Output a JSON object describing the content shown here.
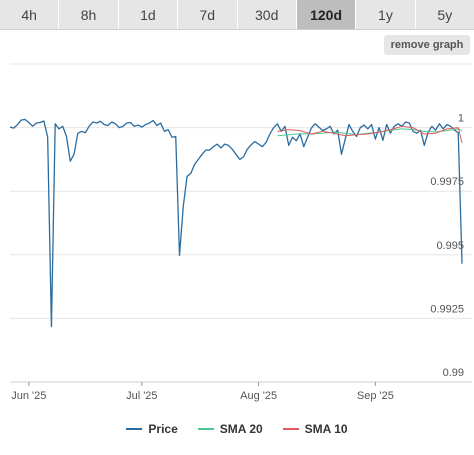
{
  "range_tabs": [
    {
      "label": "4h"
    },
    {
      "label": "8h"
    },
    {
      "label": "1d"
    },
    {
      "label": "7d"
    },
    {
      "label": "30d"
    },
    {
      "label": "120d",
      "active": true
    },
    {
      "label": "1y"
    },
    {
      "label": "5y"
    }
  ],
  "controls": {
    "remove_graph_label": "remove graph"
  },
  "colors": {
    "price": "#2b6c9e",
    "sma20": "#4cc790",
    "sma10": "#e05a5a",
    "grid": "#e6e6e6",
    "active_tab": "#bdbdbd"
  },
  "chart_data": {
    "type": "line",
    "xlabel": "",
    "ylabel": "",
    "x_axis": {
      "start": "2025-05-27",
      "end": "2025-09-24",
      "tick_labels": [
        {
          "label": "Jun '25",
          "date": "2025-06-01"
        },
        {
          "label": "Jul '25",
          "date": "2025-07-01"
        },
        {
          "label": "Aug '25",
          "date": "2025-08-01"
        },
        {
          "label": "Sep '25",
          "date": "2025-09-01"
        }
      ]
    },
    "y_axis": {
      "range": [
        0.99,
        1.0025
      ],
      "tick_labels": [
        {
          "label": "0.99",
          "value": 0.99
        },
        {
          "label": "0.9925",
          "value": 0.9925
        },
        {
          "label": "0.995",
          "value": 0.995
        },
        {
          "label": "0.9975",
          "value": 0.9975
        },
        {
          "label": "1",
          "value": 1.0
        }
      ],
      "position": "right"
    },
    "grid": true,
    "legend_position": "bottom",
    "series": [
      {
        "name": "Price",
        "points": [
          [
            "2025-05-27",
            1.00002
          ],
          [
            "2025-05-28",
            0.99998
          ],
          [
            "2025-05-29",
            1.00012
          ],
          [
            "2025-05-30",
            1.0003
          ],
          [
            "2025-05-31",
            1.00032
          ],
          [
            "2025-06-01",
            1.0002
          ],
          [
            "2025-06-02",
            1.00005
          ],
          [
            "2025-06-03",
            1.00018
          ],
          [
            "2025-06-04",
            1.0002
          ],
          [
            "2025-06-05",
            1.00026
          ],
          [
            "2025-06-06",
            0.99962
          ],
          [
            "2025-06-07",
            0.99218
          ],
          [
            "2025-06-08",
            1.00015
          ],
          [
            "2025-06-09",
            0.99995
          ],
          [
            "2025-06-10",
            1.00005
          ],
          [
            "2025-06-11",
            0.99965
          ],
          [
            "2025-06-12",
            0.99868
          ],
          [
            "2025-06-13",
            0.99895
          ],
          [
            "2025-06-14",
            0.99978
          ],
          [
            "2025-06-15",
            0.99985
          ],
          [
            "2025-06-16",
            0.9998
          ],
          [
            "2025-06-17",
            1.00005
          ],
          [
            "2025-06-18",
            1.00022
          ],
          [
            "2025-06-19",
            1.00018
          ],
          [
            "2025-06-20",
            1.00025
          ],
          [
            "2025-06-21",
            1.00012
          ],
          [
            "2025-06-22",
            1.00008
          ],
          [
            "2025-06-23",
            1.00022
          ],
          [
            "2025-06-24",
            1.00015
          ],
          [
            "2025-06-25",
            1.0
          ],
          [
            "2025-06-26",
            1.00005
          ],
          [
            "2025-06-27",
            1.00018
          ],
          [
            "2025-06-28",
            1.0002
          ],
          [
            "2025-06-29",
            1.00005
          ],
          [
            "2025-06-30",
            1.0001
          ],
          [
            "2025-07-01",
            1.00002
          ],
          [
            "2025-07-02",
            1.00012
          ],
          [
            "2025-07-03",
            1.00018
          ],
          [
            "2025-07-04",
            1.00028
          ],
          [
            "2025-07-05",
            1.00008
          ],
          [
            "2025-07-06",
            1.00018
          ],
          [
            "2025-07-07",
            0.99985
          ],
          [
            "2025-07-08",
            0.99992
          ],
          [
            "2025-07-09",
            0.99962
          ],
          [
            "2025-07-10",
            0.99965
          ],
          [
            "2025-07-11",
            0.99498
          ],
          [
            "2025-07-12",
            0.9969
          ],
          [
            "2025-07-13",
            0.99808
          ],
          [
            "2025-07-14",
            0.9982
          ],
          [
            "2025-07-15",
            0.99855
          ],
          [
            "2025-07-16",
            0.99875
          ],
          [
            "2025-07-17",
            0.99895
          ],
          [
            "2025-07-18",
            0.99912
          ],
          [
            "2025-07-19",
            0.99912
          ],
          [
            "2025-07-20",
            0.99925
          ],
          [
            "2025-07-21",
            0.99935
          ],
          [
            "2025-07-22",
            0.9992
          ],
          [
            "2025-07-23",
            0.99935
          ],
          [
            "2025-07-24",
            0.9993
          ],
          [
            "2025-07-25",
            0.99915
          ],
          [
            "2025-07-26",
            0.99895
          ],
          [
            "2025-07-27",
            0.99875
          ],
          [
            "2025-07-28",
            0.99885
          ],
          [
            "2025-07-29",
            0.99915
          ],
          [
            "2025-07-30",
            0.99932
          ],
          [
            "2025-07-31",
            0.99945
          ],
          [
            "2025-08-01",
            0.99935
          ],
          [
            "2025-08-02",
            0.99925
          ],
          [
            "2025-08-03",
            0.99942
          ],
          [
            "2025-08-04",
            0.99975
          ],
          [
            "2025-08-05",
            1.0
          ],
          [
            "2025-08-06",
            1.00015
          ],
          [
            "2025-08-07",
            0.99985
          ],
          [
            "2025-08-08",
            1.00005
          ],
          [
            "2025-08-09",
            0.9993
          ],
          [
            "2025-08-10",
            0.99962
          ],
          [
            "2025-08-11",
            0.99948
          ],
          [
            "2025-08-12",
            0.99975
          ],
          [
            "2025-08-13",
            0.99925
          ],
          [
            "2025-08-14",
            0.99962
          ],
          [
            "2025-08-15",
            0.99998
          ],
          [
            "2025-08-16",
            1.00015
          ],
          [
            "2025-08-17",
            1.00002
          ],
          [
            "2025-08-18",
            0.99988
          ],
          [
            "2025-08-19",
            0.99995
          ],
          [
            "2025-08-20",
            1.00005
          ],
          [
            "2025-08-21",
            0.99975
          ],
          [
            "2025-08-22",
            0.9999
          ],
          [
            "2025-08-23",
            0.99895
          ],
          [
            "2025-08-24",
            0.99955
          ],
          [
            "2025-08-25",
            1.00012
          ],
          [
            "2025-08-26",
            0.99985
          ],
          [
            "2025-08-27",
            0.99965
          ],
          [
            "2025-08-28",
            1.0
          ],
          [
            "2025-08-29",
            1.0001
          ],
          [
            "2025-08-30",
            0.99995
          ],
          [
            "2025-08-31",
            1.00012
          ],
          [
            "2025-09-01",
            0.99955
          ],
          [
            "2025-09-02",
            1.0
          ],
          [
            "2025-09-03",
            0.9995
          ],
          [
            "2025-09-04",
            1.00012
          ],
          [
            "2025-09-05",
            0.99978
          ],
          [
            "2025-09-06",
            1.00005
          ],
          [
            "2025-09-07",
            1.00015
          ],
          [
            "2025-09-08",
            1.00005
          ],
          [
            "2025-09-09",
            1.00022
          ],
          [
            "2025-09-10",
            1.00018
          ],
          [
            "2025-09-11",
            0.99985
          ],
          [
            "2025-09-12",
            0.99978
          ],
          [
            "2025-09-13",
            0.9999
          ],
          [
            "2025-09-14",
            0.9993
          ],
          [
            "2025-09-15",
            0.99982
          ],
          [
            "2025-09-16",
            1.00005
          ],
          [
            "2025-09-17",
            0.9999
          ],
          [
            "2025-09-18",
            1.00015
          ],
          [
            "2025-09-19",
            0.99995
          ],
          [
            "2025-09-20",
            1.00012
          ],
          [
            "2025-09-21",
            1.00005
          ],
          [
            "2025-09-22",
            0.9999
          ],
          [
            "2025-09-23",
            0.9998
          ],
          [
            "2025-09-24",
            0.99465
          ]
        ]
      },
      {
        "name": "SMA 20",
        "points": [
          [
            "2025-08-06",
            0.99968
          ],
          [
            "2025-08-09",
            0.99972
          ],
          [
            "2025-08-12",
            0.99976
          ],
          [
            "2025-08-15",
            0.99975
          ],
          [
            "2025-08-18",
            0.99978
          ],
          [
            "2025-08-21",
            0.99982
          ],
          [
            "2025-08-24",
            0.99978
          ],
          [
            "2025-08-27",
            0.99972
          ],
          [
            "2025-08-30",
            0.99978
          ],
          [
            "2025-09-02",
            0.99982
          ],
          [
            "2025-09-05",
            0.9999
          ],
          [
            "2025-09-08",
            0.99995
          ],
          [
            "2025-09-11",
            0.99992
          ],
          [
            "2025-09-14",
            0.99985
          ],
          [
            "2025-09-17",
            0.99983
          ],
          [
            "2025-09-20",
            0.99988
          ],
          [
            "2025-09-23",
            0.99995
          ],
          [
            "2025-09-24",
            0.99988
          ]
        ]
      },
      {
        "name": "SMA 10",
        "points": [
          [
            "2025-08-06",
            0.99985
          ],
          [
            "2025-08-09",
            0.99992
          ],
          [
            "2025-08-12",
            0.99988
          ],
          [
            "2025-08-15",
            0.99975
          ],
          [
            "2025-08-18",
            0.99985
          ],
          [
            "2025-08-21",
            0.99978
          ],
          [
            "2025-08-24",
            0.99968
          ],
          [
            "2025-08-27",
            0.99972
          ],
          [
            "2025-08-30",
            0.99975
          ],
          [
            "2025-09-02",
            0.99982
          ],
          [
            "2025-09-05",
            0.99992
          ],
          [
            "2025-09-08",
            1.00005
          ],
          [
            "2025-09-11",
            1.0
          ],
          [
            "2025-09-14",
            0.99975
          ],
          [
            "2025-09-17",
            0.99978
          ],
          [
            "2025-09-20",
            0.99995
          ],
          [
            "2025-09-23",
            1.0
          ],
          [
            "2025-09-24",
            0.9994
          ]
        ]
      }
    ]
  }
}
